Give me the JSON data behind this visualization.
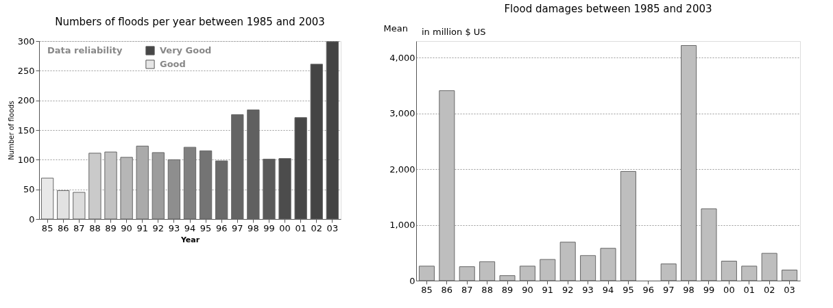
{
  "chart_data": [
    {
      "type": "bar",
      "title": "Numbers of floods per year between 1985 and 2003",
      "xlabel": "Year",
      "ylabel": "Number of floods",
      "legend_title": "Data reliability",
      "legend": "top left",
      "categories": [
        "85",
        "86",
        "87",
        "88",
        "89",
        "90",
        "91",
        "92",
        "93",
        "94",
        "95",
        "96",
        "97",
        "98",
        "99",
        "00",
        "01",
        "02",
        "03"
      ],
      "series": [
        {
          "values": [
            69,
            48,
            45,
            111,
            113,
            104,
            123,
            112,
            100,
            121,
            115,
            98,
            176,
            184,
            101,
            102,
            171,
            261,
            299
          ],
          "colors": [
            "#e8e8e8",
            "#e2e2e2",
            "#dcdcdc",
            "#cacaca",
            "#c2c2c2",
            "#b6b6b6",
            "#aaaaaa",
            "#9c9c9c",
            "#8e8e8e",
            "#808080",
            "#747474",
            "#6a6a6a",
            "#646464",
            "#606060",
            "#5a5a5a",
            "#4c4c4c",
            "#474747",
            "#444444",
            "#444444"
          ]
        },
        {
          "name": "Very Good",
          "color": "#474747",
          "values": [
            null,
            null,
            null,
            null,
            null,
            null,
            null,
            null,
            null,
            null,
            null,
            null,
            null,
            null,
            null,
            null,
            null,
            null,
            null
          ]
        },
        {
          "name": "Good",
          "color": "#e6e6e6",
          "values": [
            null,
            null,
            null,
            null,
            null,
            null,
            null,
            null,
            null,
            null,
            null,
            null,
            null,
            null,
            null,
            null,
            null,
            null,
            null
          ]
        }
      ],
      "ylim": [
        0,
        300
      ],
      "yticks": [
        0,
        50,
        100,
        150,
        200,
        250,
        300
      ],
      "grid": "y"
    },
    {
      "type": "bar",
      "title": "Flood damages between 1985 and 2003",
      "ylabel": "Mean",
      "annotations": [
        "in million $ US"
      ],
      "categories": [
        "85",
        "86",
        "87",
        "88",
        "89",
        "90",
        "91",
        "92",
        "93",
        "94",
        "95",
        "96",
        "97",
        "98",
        "99",
        "00",
        "01",
        "02",
        "03"
      ],
      "series": [
        {
          "color": "#bebebe",
          "values": [
            260,
            3410,
            250,
            340,
            90,
            260,
            380,
            690,
            450,
            580,
            1960,
            null,
            300,
            4220,
            1290,
            350,
            260,
            490,
            190
          ]
        }
      ],
      "ylim": [
        0,
        4300
      ],
      "yticks": [
        0,
        {
          "value": 1000,
          "label": "1,000"
        },
        {
          "value": 2000,
          "label": "2,000"
        },
        {
          "value": 3000,
          "label": "3,000"
        },
        {
          "value": 4000,
          "label": "4,000"
        }
      ],
      "grid": "y"
    }
  ]
}
